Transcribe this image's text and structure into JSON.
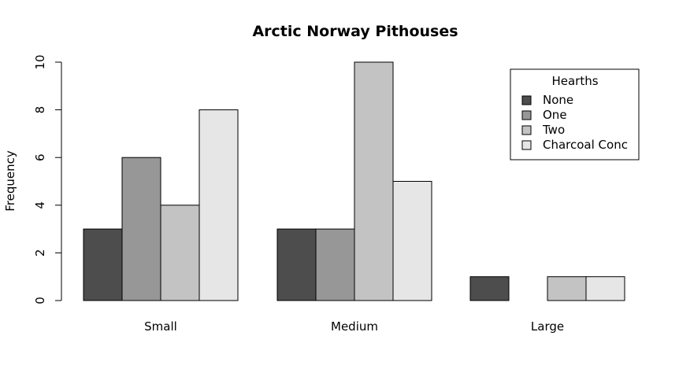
{
  "chart_data": {
    "type": "bar",
    "title": "Arctic Norway Pithouses",
    "xlabel": "",
    "ylabel": "Frequency",
    "ylim": [
      0,
      10
    ],
    "yticks": [
      0,
      2,
      4,
      6,
      8,
      10
    ],
    "categories": [
      "Small",
      "Medium",
      "Large"
    ],
    "series": [
      {
        "name": "None",
        "color": "#4d4d4d",
        "values": [
          3,
          3,
          1
        ]
      },
      {
        "name": "One",
        "color": "#979797",
        "values": [
          6,
          3,
          0
        ]
      },
      {
        "name": "Two",
        "color": "#c3c3c3",
        "values": [
          4,
          10,
          1
        ]
      },
      {
        "name": "Charcoal Conc",
        "color": "#e6e6e6",
        "values": [
          8,
          5,
          1
        ]
      }
    ],
    "legend": {
      "title": "Hearths",
      "position": "top-right"
    },
    "grid": false
  }
}
